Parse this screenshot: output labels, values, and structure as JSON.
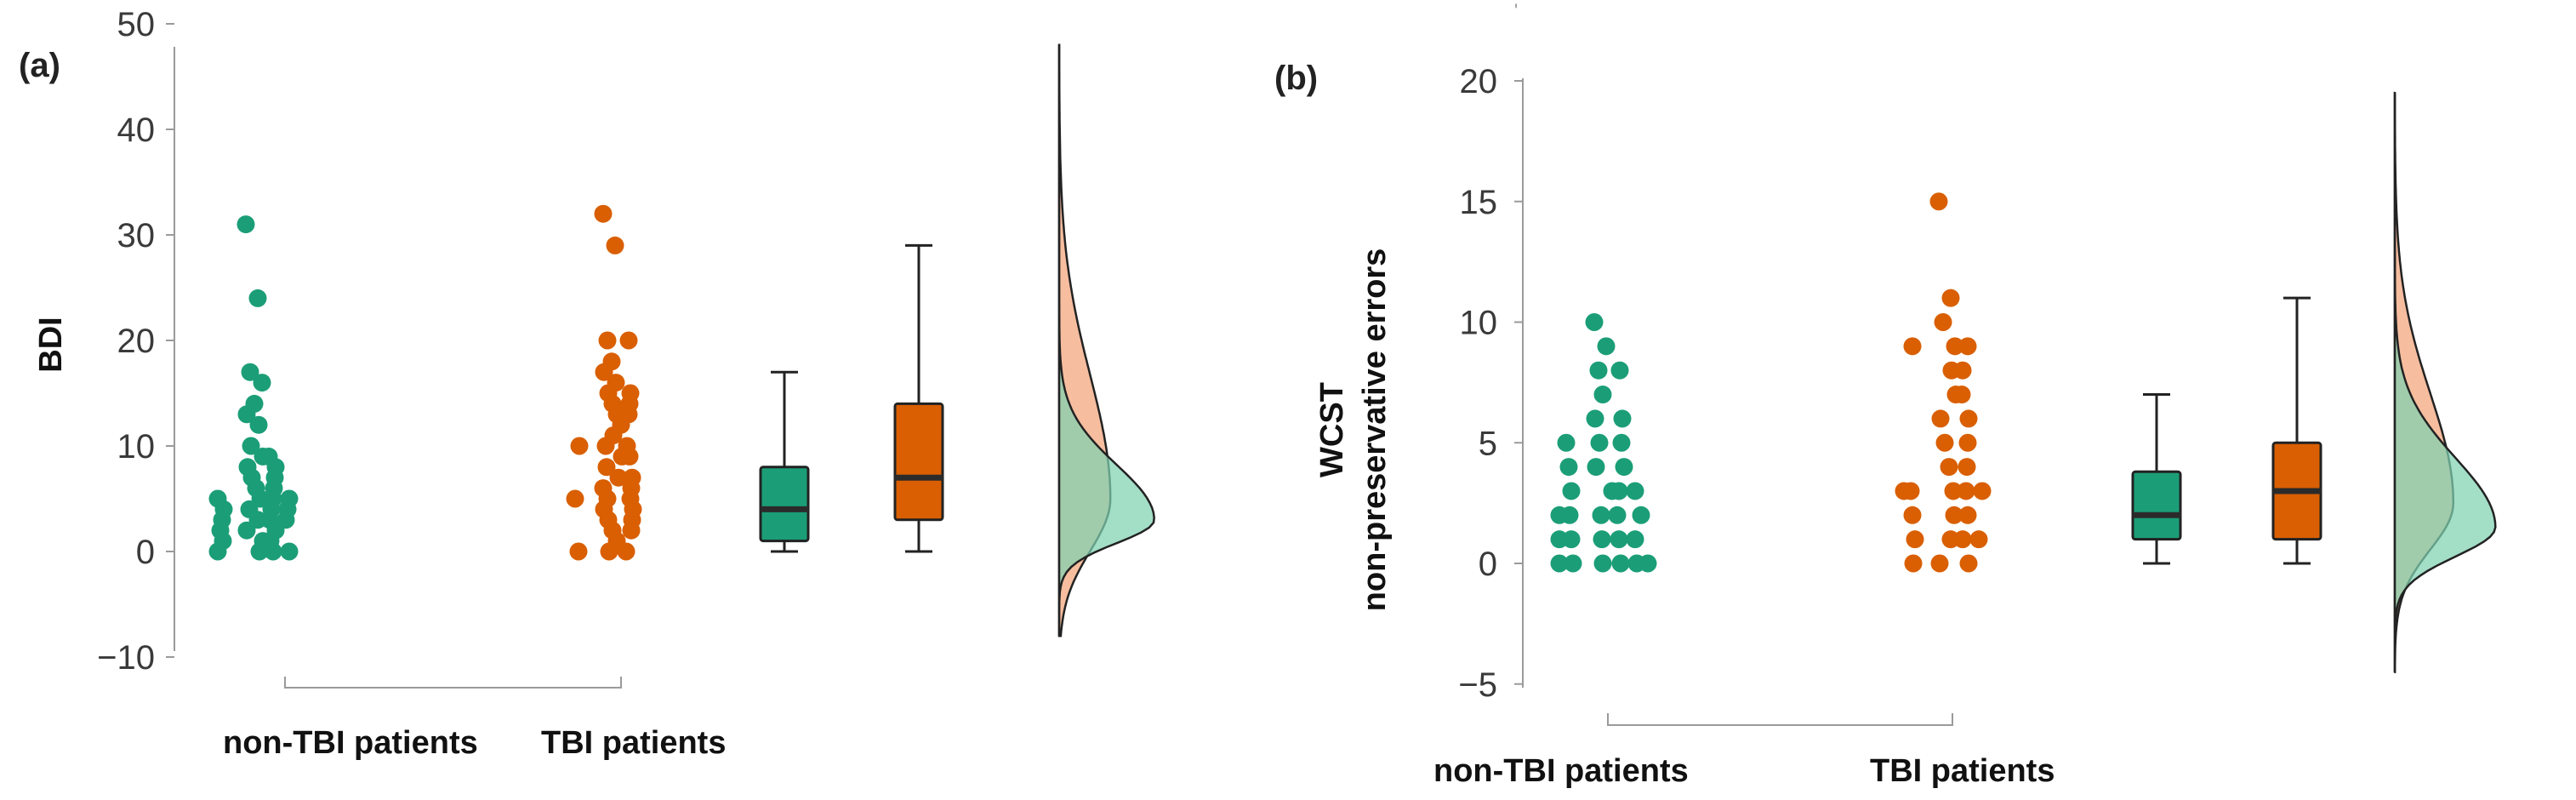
{
  "colors": {
    "nonTBI": "#1b9e77",
    "TBI": "#d95f02",
    "nonTBI_density": "#7fd1b2",
    "TBI_density": "#f2a47a",
    "outline": "#222222"
  },
  "chart_data": [
    {
      "type": "raincloud",
      "panel_label": "(a)",
      "ylabel_lines": [
        "BDI"
      ],
      "ylim": [
        -10,
        50
      ],
      "yticks": [
        50,
        40,
        30,
        20,
        10,
        0,
        -10
      ],
      "ytick_labels": [
        "50",
        "40",
        "30",
        "20",
        "10",
        "0",
        "−10"
      ],
      "categories": [
        "non-TBI patients",
        "TBI patients"
      ],
      "points": [
        {
          "group": "nonTBI",
          "values": [
            31,
            24,
            17,
            16,
            14,
            13,
            12,
            10,
            9,
            9,
            8,
            8,
            7,
            7,
            6,
            6,
            5,
            5,
            5,
            5,
            4,
            4,
            4,
            4,
            3,
            3,
            3,
            3,
            2,
            2,
            2,
            1,
            1,
            1,
            0,
            0,
            0,
            0
          ]
        },
        {
          "group": "TBI",
          "values": [
            32,
            29,
            20,
            20,
            18,
            17,
            16,
            15,
            15,
            14,
            14,
            13,
            13,
            12,
            11,
            10,
            10,
            10,
            9,
            9,
            8,
            7,
            7,
            6,
            6,
            5,
            5,
            5,
            4,
            4,
            3,
            3,
            2,
            2,
            1,
            0,
            0,
            0
          ]
        }
      ],
      "boxes": [
        {
          "group": "nonTBI",
          "min": 0,
          "q1": 1,
          "median": 4,
          "q3": 8,
          "max": 17
        },
        {
          "group": "TBI",
          "min": 0,
          "q1": 3,
          "median": 7,
          "q3": 14,
          "max": 29
        }
      ],
      "densities": [
        {
          "group": "nonTBI",
          "mode": 3,
          "spread": 4
        },
        {
          "group": "TBI",
          "mode": 5,
          "spread": 9
        }
      ]
    },
    {
      "type": "raincloud",
      "panel_label": "(b)",
      "ylabel_lines": [
        "WCST",
        "non-preservative errors"
      ],
      "ylim": [
        -5,
        20
      ],
      "yticks": [
        20,
        15,
        10,
        5,
        0,
        -5
      ],
      "ytick_labels": [
        "20",
        "15",
        "10",
        "5",
        "0",
        "−5"
      ],
      "categories": [
        "non-TBI patients",
        "TBI patients"
      ],
      "points": [
        {
          "group": "nonTBI",
          "values": [
            10,
            9,
            8,
            8,
            7,
            6,
            6,
            5,
            5,
            5,
            4,
            4,
            4,
            3,
            3,
            3,
            3,
            2,
            2,
            2,
            2,
            2,
            1,
            1,
            1,
            1,
            1,
            0,
            0,
            0,
            0,
            0,
            0
          ]
        },
        {
          "group": "TBI",
          "values": [
            15,
            11,
            10,
            9,
            9,
            9,
            8,
            8,
            7,
            7,
            6,
            6,
            5,
            5,
            4,
            4,
            3,
            3,
            3,
            3,
            3,
            2,
            2,
            2,
            1,
            1,
            1,
            1,
            0,
            0,
            0
          ]
        }
      ],
      "boxes": [
        {
          "group": "nonTBI",
          "min": 0,
          "q1": 1,
          "median": 2,
          "q3": 3.8,
          "max": 7
        },
        {
          "group": "TBI",
          "min": 0,
          "q1": 1,
          "median": 3,
          "q3": 5,
          "max": 11
        }
      ],
      "densities": [
        {
          "group": "nonTBI",
          "mode": 1.5,
          "spread": 2.2
        },
        {
          "group": "TBI",
          "mode": 2.5,
          "spread": 3.5
        }
      ]
    }
  ]
}
